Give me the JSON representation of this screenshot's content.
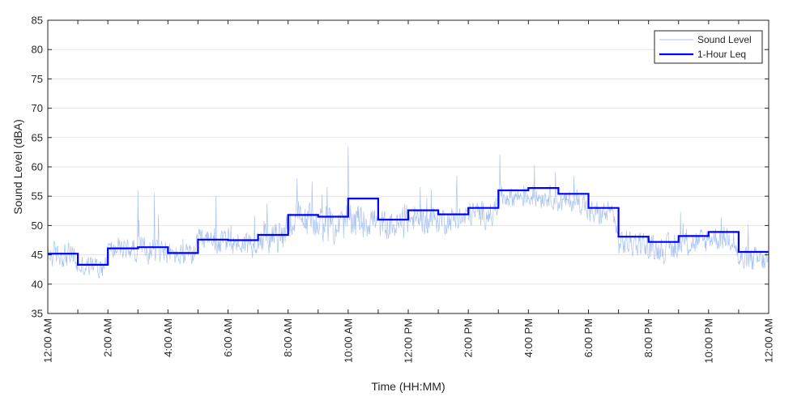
{
  "chart_data": {
    "type": "line",
    "title": "",
    "xlabel": "Time (HH:MM)",
    "ylabel": "Sound Level (dBA)",
    "xlim_hours": [
      0,
      24
    ],
    "ylim": [
      35,
      85
    ],
    "yticks": [
      35,
      40,
      45,
      50,
      55,
      60,
      65,
      70,
      75,
      80,
      85
    ],
    "xticks": [
      {
        "hour": 0,
        "label": "12:00 AM"
      },
      {
        "hour": 2,
        "label": "2:00 AM"
      },
      {
        "hour": 4,
        "label": "4:00 AM"
      },
      {
        "hour": 6,
        "label": "6:00 AM"
      },
      {
        "hour": 8,
        "label": "8:00 AM"
      },
      {
        "hour": 10,
        "label": "10:00 AM"
      },
      {
        "hour": 12,
        "label": "12:00 PM"
      },
      {
        "hour": 14,
        "label": "2:00 PM"
      },
      {
        "hour": 16,
        "label": "4:00 PM"
      },
      {
        "hour": 18,
        "label": "6:00 PM"
      },
      {
        "hour": 20,
        "label": "8:00 PM"
      },
      {
        "hour": 22,
        "label": "10:00 PM"
      },
      {
        "hour": 24,
        "label": "12:00 AM"
      }
    ],
    "grid": "horizontal",
    "legend_position": "top-right",
    "series": [
      {
        "name": "Sound Level",
        "style": "thin-line",
        "color": "#a9c3f0",
        "hourly_mean": [
          45,
          43,
          46,
          46,
          45,
          47,
          47,
          48,
          51,
          50,
          51,
          50,
          51,
          51,
          52,
          55,
          55,
          54,
          52,
          47,
          46,
          47,
          48,
          44
        ],
        "hourly_spread": [
          3,
          2.5,
          2.5,
          3,
          2.5,
          3,
          3,
          3.5,
          4,
          4,
          4,
          3.5,
          3,
          3,
          3,
          2.5,
          2.5,
          2.5,
          3,
          3,
          3,
          3,
          3,
          3
        ],
        "peaks": [
          {
            "hour": 10.0,
            "value": 63.5
          },
          {
            "hour": 15.05,
            "value": 62
          },
          {
            "hour": 3.0,
            "value": 56
          },
          {
            "hour": 3.55,
            "value": 55.5
          },
          {
            "hour": 5.6,
            "value": 55
          },
          {
            "hour": 8.3,
            "value": 58
          },
          {
            "hour": 8.8,
            "value": 57.5
          },
          {
            "hour": 9.3,
            "value": 56.5
          },
          {
            "hour": 12.4,
            "value": 56.5
          },
          {
            "hour": 16.9,
            "value": 59
          }
        ]
      },
      {
        "name": "1-Hour Leq",
        "style": "step",
        "color": "#0000ff",
        "values": [
          45.2,
          43.3,
          46.1,
          46.3,
          45.3,
          47.6,
          47.5,
          48.4,
          51.8,
          51.5,
          54.6,
          51.0,
          52.6,
          51.9,
          53.0,
          56.0,
          56.4,
          55.4,
          53.0,
          48.1,
          47.2,
          48.2,
          48.9,
          45.5
        ]
      }
    ]
  }
}
